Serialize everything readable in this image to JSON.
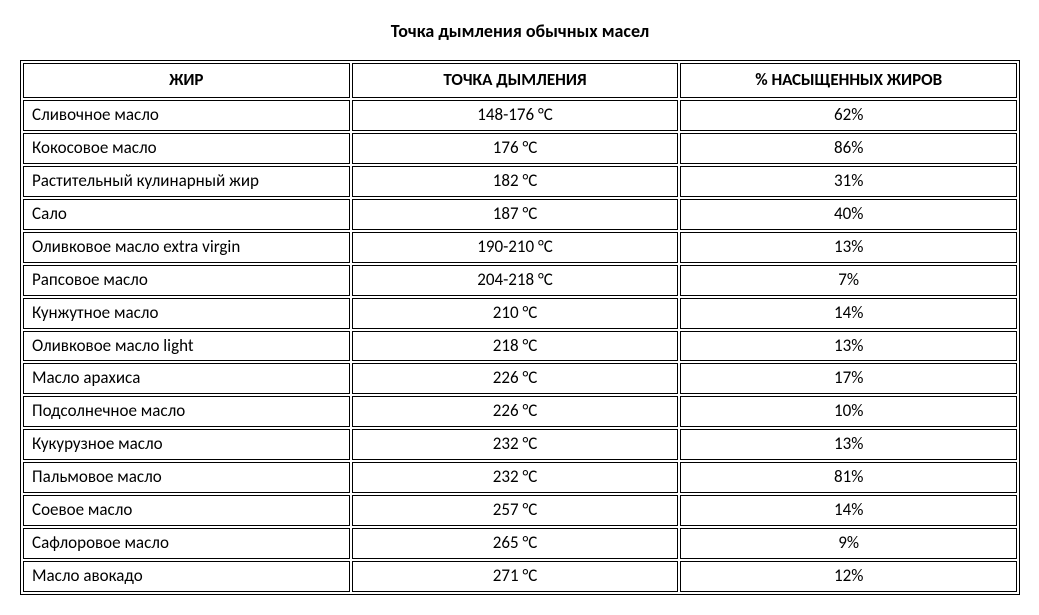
{
  "title": "Точка дымления обычных масел",
  "table": {
    "type": "table",
    "background_color": "#ffffff",
    "border_color": "#000000",
    "text_color": "#000000",
    "title_fontsize": 18,
    "cell_fontsize": 17,
    "header_align": "center",
    "columns": [
      {
        "key": "fat",
        "label": "ЖИР",
        "align": "left",
        "width": "33%"
      },
      {
        "key": "smoke_point",
        "label": "ТОЧКА ДЫМЛЕНИЯ",
        "align": "center",
        "width": "33%"
      },
      {
        "key": "saturated_pct",
        "label": "% НАСЫЩЕННЫХ ЖИРОВ",
        "align": "center",
        "width": "34%"
      }
    ],
    "rows": [
      {
        "fat": "Сливочное масло",
        "smoke_point": "148-176 °C",
        "saturated_pct": "62%"
      },
      {
        "fat": "Кокосовое масло",
        "smoke_point": "176 °C",
        "saturated_pct": "86%"
      },
      {
        "fat": "Растительный кулинарный жир",
        "smoke_point": "182 °C",
        "saturated_pct": "31%"
      },
      {
        "fat": "Сало",
        "smoke_point": "187 °C",
        "saturated_pct": "40%"
      },
      {
        "fat": "Оливковое масло extra virgin",
        "smoke_point": "190-210 °C",
        "saturated_pct": "13%"
      },
      {
        "fat": "Рапсовое масло",
        "smoke_point": "204-218 °C",
        "saturated_pct": "7%"
      },
      {
        "fat": "Кунжутное масло",
        "smoke_point": "210 °C",
        "saturated_pct": "14%"
      },
      {
        "fat": "Оливковое масло light",
        "smoke_point": "218 °C",
        "saturated_pct": "13%"
      },
      {
        "fat": "Масло арахиса",
        "smoke_point": "226 °C",
        "saturated_pct": "17%"
      },
      {
        "fat": "Подсолнечное масло",
        "smoke_point": "226 °C",
        "saturated_pct": "10%"
      },
      {
        "fat": "Кукурузное масло",
        "smoke_point": "232 °C",
        "saturated_pct": "13%"
      },
      {
        "fat": "Пальмовое масло",
        "smoke_point": "232 °C",
        "saturated_pct": "81%"
      },
      {
        "fat": "Соевое масло",
        "smoke_point": "257 °C",
        "saturated_pct": "14%"
      },
      {
        "fat": "Сафлоровое масло",
        "smoke_point": "265 °C",
        "saturated_pct": "9%"
      },
      {
        "fat": "Масло авокадо",
        "smoke_point": "271 °C",
        "saturated_pct": "12%"
      }
    ]
  }
}
